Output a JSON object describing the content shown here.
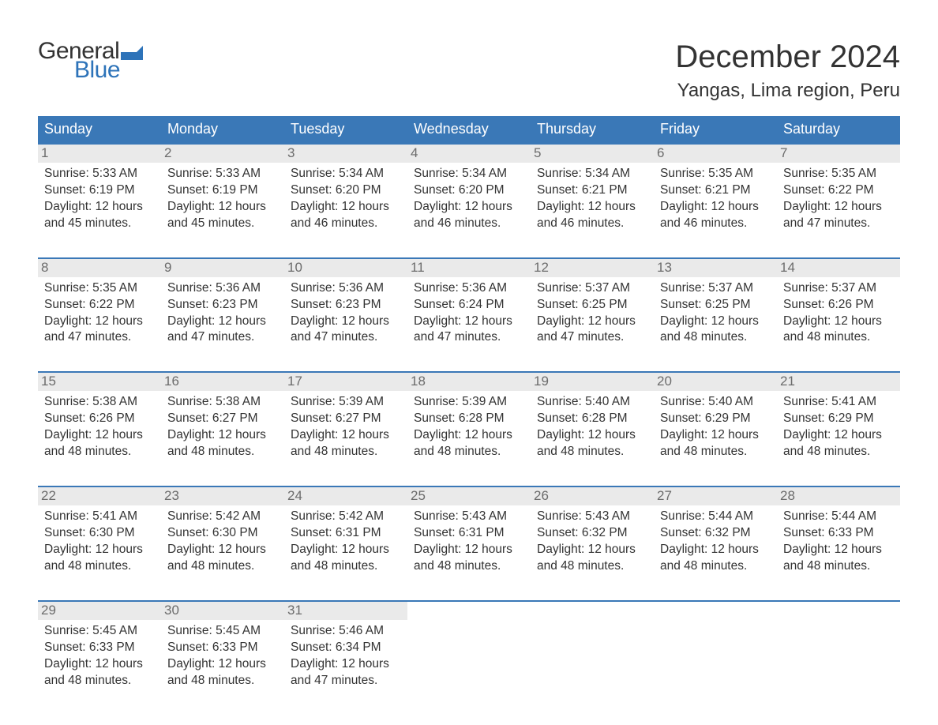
{
  "brand": {
    "word1": "General",
    "word2": "Blue",
    "text_color": "#333333",
    "accent_color": "#2d73b9"
  },
  "title": "December 2024",
  "location": "Yangas, Lima region, Peru",
  "colors": {
    "header_bg": "#3a78b7",
    "header_text": "#ffffff",
    "daynum_bg": "#eaeaea",
    "daynum_text": "#6c6c6c",
    "body_text": "#333333",
    "week_border": "#3a78b7",
    "background": "#ffffff"
  },
  "typography": {
    "title_fontsize": 40,
    "location_fontsize": 24,
    "dayheader_fontsize": 18,
    "daynum_fontsize": 17,
    "dayinfo_fontsize": 15.5,
    "logo_fontsize": 30,
    "font_family": "Arial"
  },
  "day_headers": [
    "Sunday",
    "Monday",
    "Tuesday",
    "Wednesday",
    "Thursday",
    "Friday",
    "Saturday"
  ],
  "weeks": [
    [
      {
        "n": "1",
        "sunrise": "Sunrise: 5:33 AM",
        "sunset": "Sunset: 6:19 PM",
        "daylight": "Daylight: 12 hours and 45 minutes."
      },
      {
        "n": "2",
        "sunrise": "Sunrise: 5:33 AM",
        "sunset": "Sunset: 6:19 PM",
        "daylight": "Daylight: 12 hours and 45 minutes."
      },
      {
        "n": "3",
        "sunrise": "Sunrise: 5:34 AM",
        "sunset": "Sunset: 6:20 PM",
        "daylight": "Daylight: 12 hours and 46 minutes."
      },
      {
        "n": "4",
        "sunrise": "Sunrise: 5:34 AM",
        "sunset": "Sunset: 6:20 PM",
        "daylight": "Daylight: 12 hours and 46 minutes."
      },
      {
        "n": "5",
        "sunrise": "Sunrise: 5:34 AM",
        "sunset": "Sunset: 6:21 PM",
        "daylight": "Daylight: 12 hours and 46 minutes."
      },
      {
        "n": "6",
        "sunrise": "Sunrise: 5:35 AM",
        "sunset": "Sunset: 6:21 PM",
        "daylight": "Daylight: 12 hours and 46 minutes."
      },
      {
        "n": "7",
        "sunrise": "Sunrise: 5:35 AM",
        "sunset": "Sunset: 6:22 PM",
        "daylight": "Daylight: 12 hours and 47 minutes."
      }
    ],
    [
      {
        "n": "8",
        "sunrise": "Sunrise: 5:35 AM",
        "sunset": "Sunset: 6:22 PM",
        "daylight": "Daylight: 12 hours and 47 minutes."
      },
      {
        "n": "9",
        "sunrise": "Sunrise: 5:36 AM",
        "sunset": "Sunset: 6:23 PM",
        "daylight": "Daylight: 12 hours and 47 minutes."
      },
      {
        "n": "10",
        "sunrise": "Sunrise: 5:36 AM",
        "sunset": "Sunset: 6:23 PM",
        "daylight": "Daylight: 12 hours and 47 minutes."
      },
      {
        "n": "11",
        "sunrise": "Sunrise: 5:36 AM",
        "sunset": "Sunset: 6:24 PM",
        "daylight": "Daylight: 12 hours and 47 minutes."
      },
      {
        "n": "12",
        "sunrise": "Sunrise: 5:37 AM",
        "sunset": "Sunset: 6:25 PM",
        "daylight": "Daylight: 12 hours and 47 minutes."
      },
      {
        "n": "13",
        "sunrise": "Sunrise: 5:37 AM",
        "sunset": "Sunset: 6:25 PM",
        "daylight": "Daylight: 12 hours and 48 minutes."
      },
      {
        "n": "14",
        "sunrise": "Sunrise: 5:37 AM",
        "sunset": "Sunset: 6:26 PM",
        "daylight": "Daylight: 12 hours and 48 minutes."
      }
    ],
    [
      {
        "n": "15",
        "sunrise": "Sunrise: 5:38 AM",
        "sunset": "Sunset: 6:26 PM",
        "daylight": "Daylight: 12 hours and 48 minutes."
      },
      {
        "n": "16",
        "sunrise": "Sunrise: 5:38 AM",
        "sunset": "Sunset: 6:27 PM",
        "daylight": "Daylight: 12 hours and 48 minutes."
      },
      {
        "n": "17",
        "sunrise": "Sunrise: 5:39 AM",
        "sunset": "Sunset: 6:27 PM",
        "daylight": "Daylight: 12 hours and 48 minutes."
      },
      {
        "n": "18",
        "sunrise": "Sunrise: 5:39 AM",
        "sunset": "Sunset: 6:28 PM",
        "daylight": "Daylight: 12 hours and 48 minutes."
      },
      {
        "n": "19",
        "sunrise": "Sunrise: 5:40 AM",
        "sunset": "Sunset: 6:28 PM",
        "daylight": "Daylight: 12 hours and 48 minutes."
      },
      {
        "n": "20",
        "sunrise": "Sunrise: 5:40 AM",
        "sunset": "Sunset: 6:29 PM",
        "daylight": "Daylight: 12 hours and 48 minutes."
      },
      {
        "n": "21",
        "sunrise": "Sunrise: 5:41 AM",
        "sunset": "Sunset: 6:29 PM",
        "daylight": "Daylight: 12 hours and 48 minutes."
      }
    ],
    [
      {
        "n": "22",
        "sunrise": "Sunrise: 5:41 AM",
        "sunset": "Sunset: 6:30 PM",
        "daylight": "Daylight: 12 hours and 48 minutes."
      },
      {
        "n": "23",
        "sunrise": "Sunrise: 5:42 AM",
        "sunset": "Sunset: 6:30 PM",
        "daylight": "Daylight: 12 hours and 48 minutes."
      },
      {
        "n": "24",
        "sunrise": "Sunrise: 5:42 AM",
        "sunset": "Sunset: 6:31 PM",
        "daylight": "Daylight: 12 hours and 48 minutes."
      },
      {
        "n": "25",
        "sunrise": "Sunrise: 5:43 AM",
        "sunset": "Sunset: 6:31 PM",
        "daylight": "Daylight: 12 hours and 48 minutes."
      },
      {
        "n": "26",
        "sunrise": "Sunrise: 5:43 AM",
        "sunset": "Sunset: 6:32 PM",
        "daylight": "Daylight: 12 hours and 48 minutes."
      },
      {
        "n": "27",
        "sunrise": "Sunrise: 5:44 AM",
        "sunset": "Sunset: 6:32 PM",
        "daylight": "Daylight: 12 hours and 48 minutes."
      },
      {
        "n": "28",
        "sunrise": "Sunrise: 5:44 AM",
        "sunset": "Sunset: 6:33 PM",
        "daylight": "Daylight: 12 hours and 48 minutes."
      }
    ],
    [
      {
        "n": "29",
        "sunrise": "Sunrise: 5:45 AM",
        "sunset": "Sunset: 6:33 PM",
        "daylight": "Daylight: 12 hours and 48 minutes."
      },
      {
        "n": "30",
        "sunrise": "Sunrise: 5:45 AM",
        "sunset": "Sunset: 6:33 PM",
        "daylight": "Daylight: 12 hours and 48 minutes."
      },
      {
        "n": "31",
        "sunrise": "Sunrise: 5:46 AM",
        "sunset": "Sunset: 6:34 PM",
        "daylight": "Daylight: 12 hours and 47 minutes."
      },
      {
        "empty": true
      },
      {
        "empty": true
      },
      {
        "empty": true
      },
      {
        "empty": true
      }
    ]
  ]
}
